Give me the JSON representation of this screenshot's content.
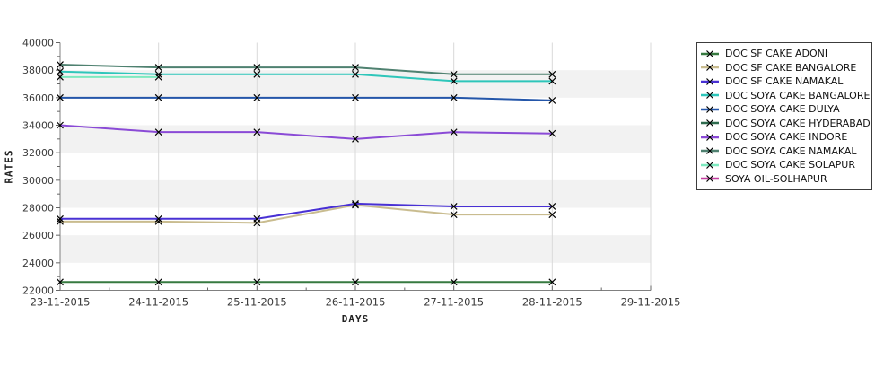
{
  "chart_data": {
    "type": "line",
    "title": "",
    "xlabel": "DAYS",
    "ylabel": "RATES",
    "x_labels": [
      "23-11-2015",
      "24-11-2015",
      "25-11-2015",
      "26-11-2015",
      "27-11-2015",
      "28-11-2015",
      "29-11-2015"
    ],
    "ylim": [
      22000,
      40000
    ],
    "y_tick_step": 2000,
    "y_minor_step": 1000,
    "marker": "x-cross",
    "marker_color": "#000000",
    "grid": "vertical-lines-and-alternating-horizontal-bands",
    "band_fill": "#f2f2f2",
    "gridline_color": "#d9d9d9",
    "axis_color": "#808080",
    "legend_position": "right",
    "series": [
      {
        "name": "DOC SF CAKE ADONI",
        "color": "#377a40",
        "values": [
          22600,
          22600,
          22600,
          22600,
          22600,
          22600
        ]
      },
      {
        "name": "DOC SF CAKE BANGALORE",
        "color": "#c9bc8f",
        "values": [
          27000,
          27000,
          26900,
          28200,
          27500,
          27500
        ]
      },
      {
        "name": "DOC SF CAKE NAMAKAL",
        "color": "#4931d4",
        "values": [
          27200,
          27200,
          27200,
          28300,
          28100,
          28100
        ]
      },
      {
        "name": "DOC SOYA CAKE BANGALORE",
        "color": "#2ec6ba",
        "values": [
          37900,
          37700,
          37700,
          37700,
          37200,
          37200
        ]
      },
      {
        "name": "DOC SOYA CAKE DULYA",
        "color": "#2456a9",
        "values": [
          36000,
          36000,
          36000,
          36000,
          36000,
          35800
        ]
      },
      {
        "name": "DOC SOYA CAKE HYDERABAD",
        "color": "#2e6b4e",
        "values": []
      },
      {
        "name": "DOC SOYA CAKE INDORE",
        "color": "#8a4ad6",
        "values": [
          34000,
          33500,
          33500,
          33000,
          33500,
          33400
        ]
      },
      {
        "name": "DOC SOYA CAKE NAMAKAL",
        "color": "#4f8170",
        "values": [
          38400,
          38200,
          38200,
          38200,
          37700,
          37700
        ]
      },
      {
        "name": "DOC SOYA CAKE SOLAPUR",
        "color": "#7deabf",
        "values": [
          37500,
          37500,
          null,
          null,
          null,
          null
        ]
      },
      {
        "name": "SOYA OIL-SOLHAPUR",
        "color": "#c33f9f",
        "values": []
      }
    ]
  }
}
